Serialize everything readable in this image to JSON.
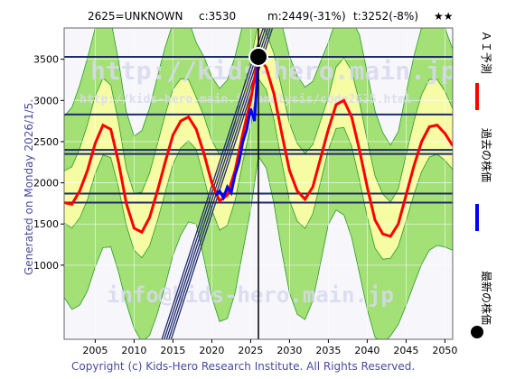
{
  "header": {
    "code_label": "2625=UNKNOWN",
    "current_label": "c:3530",
    "min_label": "m:2449(-31%)",
    "target_label": "t:3252(-8%)",
    "stars": "★★"
  },
  "side_note": "Generated on Monday 2026/1/5.",
  "copyright": "Copyright (c) Kids-Hero Research Institute. All Rights Reserved.",
  "watermarks": {
    "top": "http://kids-hero.main.jp/",
    "middle": "http://kids-hero.main.jp/analysis/code2625.html",
    "bottom": "info@kids-hero.main.jp"
  },
  "legend": {
    "ai": "ＡＩ予測",
    "past": "過去の株価",
    "latest": "最新の株価"
  },
  "colors": {
    "ai_line": "#ff0000",
    "past_line": "#0000ff",
    "band_outer": "#99dd66",
    "band_inner": "#ffffaa",
    "hline": "#1f2a6b",
    "band_line": "#2a9a2a"
  },
  "chart_data": {
    "type": "line",
    "x_ticks": [
      2005,
      2010,
      2015,
      2020,
      2025,
      2030,
      2035,
      2040,
      2045,
      2050
    ],
    "y_ticks": [
      1000,
      1500,
      2000,
      2500,
      3000,
      3500
    ],
    "xlim": [
      2001,
      2051
    ],
    "ylim": [
      100,
      3880
    ],
    "grid": true,
    "current_year": 2026,
    "current_price": 3530,
    "horizontal_levels": [
      3530,
      2830,
      2400,
      2350,
      1870,
      1760
    ],
    "series": [
      {
        "name": "ＡＩ予測",
        "x": [
          2001,
          2002,
          2003,
          2004,
          2005,
          2006,
          2007,
          2008,
          2009,
          2010,
          2011,
          2012,
          2013,
          2014,
          2015,
          2016,
          2017,
          2018,
          2019,
          2020,
          2021,
          2022,
          2023,
          2024,
          2025,
          2026,
          2027,
          2028,
          2029,
          2030,
          2031,
          2032,
          2033,
          2034,
          2035,
          2036,
          2037,
          2038,
          2039,
          2040,
          2041,
          2042,
          2043,
          2044,
          2045,
          2046,
          2047,
          2048,
          2049,
          2050,
          2051
        ],
        "values": [
          1760,
          1740,
          1900,
          2150,
          2480,
          2700,
          2650,
          2250,
          1750,
          1450,
          1400,
          1580,
          1900,
          2250,
          2580,
          2750,
          2800,
          2650,
          2350,
          2000,
          1780,
          1850,
          2150,
          2600,
          3000,
          3530,
          3400,
          3080,
          2600,
          2150,
          1900,
          1800,
          1950,
          2300,
          2650,
          2950,
          3000,
          2800,
          2400,
          1950,
          1550,
          1380,
          1350,
          1500,
          1850,
          2200,
          2500,
          2680,
          2700,
          2600,
          2450
        ]
      },
      {
        "name": "過去の株価",
        "x": [
          2020.5,
          2021,
          2021.5,
          2022,
          2022.5,
          2023,
          2023.5,
          2024,
          2024.5,
          2025,
          2025.5,
          2026
        ],
        "values": [
          1850,
          1900,
          1820,
          1950,
          1880,
          2100,
          2250,
          2500,
          2650,
          2900,
          2750,
          3530
        ]
      }
    ]
  }
}
